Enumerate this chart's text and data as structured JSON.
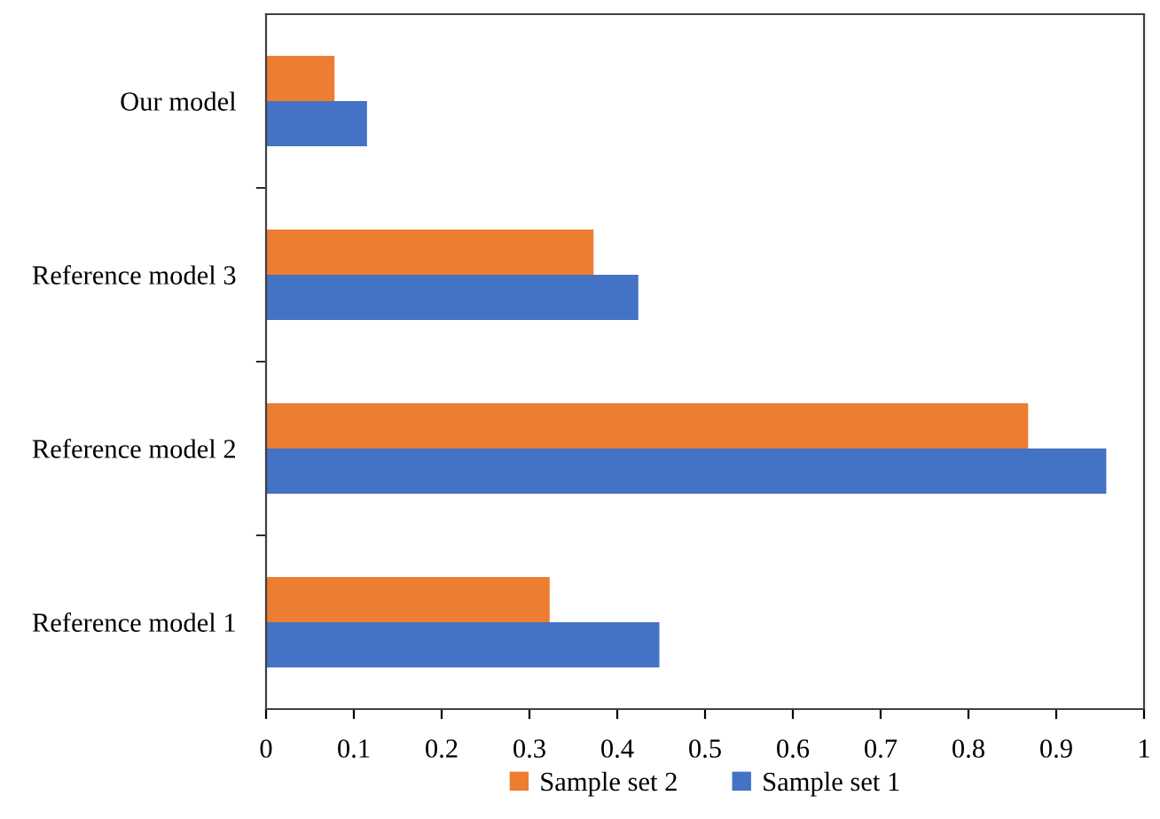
{
  "chart_data": {
    "type": "bar",
    "orientation": "horizontal",
    "categories": [
      "Our model",
      "Reference model 3",
      "Reference model 2",
      "Reference model 1"
    ],
    "series": [
      {
        "name": "Sample set 2",
        "color": "#ed7d31",
        "values": [
          0.078,
          0.373,
          0.868,
          0.323
        ]
      },
      {
        "name": "Sample set 1",
        "color": "#4472c4",
        "values": [
          0.115,
          0.424,
          0.957,
          0.448
        ]
      }
    ],
    "xlim": [
      0,
      1
    ],
    "xticks": [
      0,
      0.1,
      0.2,
      0.3,
      0.4,
      0.5,
      0.6,
      0.7,
      0.8,
      0.9,
      1
    ],
    "grid": false,
    "legend": "bottom"
  }
}
